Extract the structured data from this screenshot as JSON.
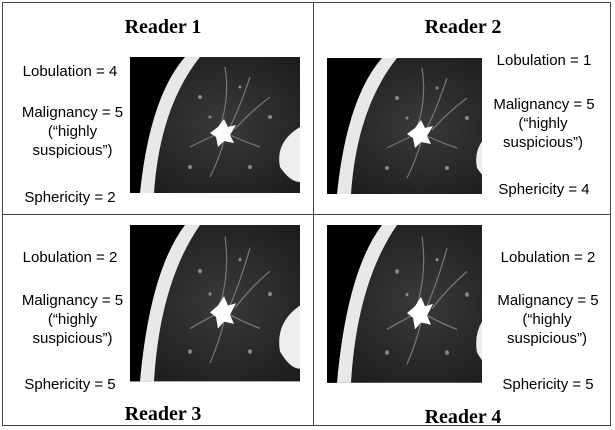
{
  "panels": [
    {
      "title": "Reader 1",
      "lobulation": "Lobulation = 4",
      "malignancy": "Malignancy = 5",
      "malignancy_note": "(“highly suspicious”)",
      "sphericity": "Sphericity = 2"
    },
    {
      "title": "Reader 2",
      "lobulation": "Lobulation = 1",
      "malignancy": "Malignancy = 5",
      "malignancy_note": "(“highly suspicious”)",
      "sphericity": "Sphericity = 4"
    },
    {
      "title": "Reader 3",
      "lobulation": "Lobulation = 2",
      "malignancy": "Malignancy = 5",
      "malignancy_note": "(“highly suspicious”)",
      "sphericity": "Sphericity = 5"
    },
    {
      "title": "Reader 4",
      "lobulation": "Lobulation = 2",
      "malignancy": "Malignancy = 5",
      "malignancy_note": "(“highly suspicious”)",
      "sphericity": "Sphericity = 5"
    }
  ]
}
